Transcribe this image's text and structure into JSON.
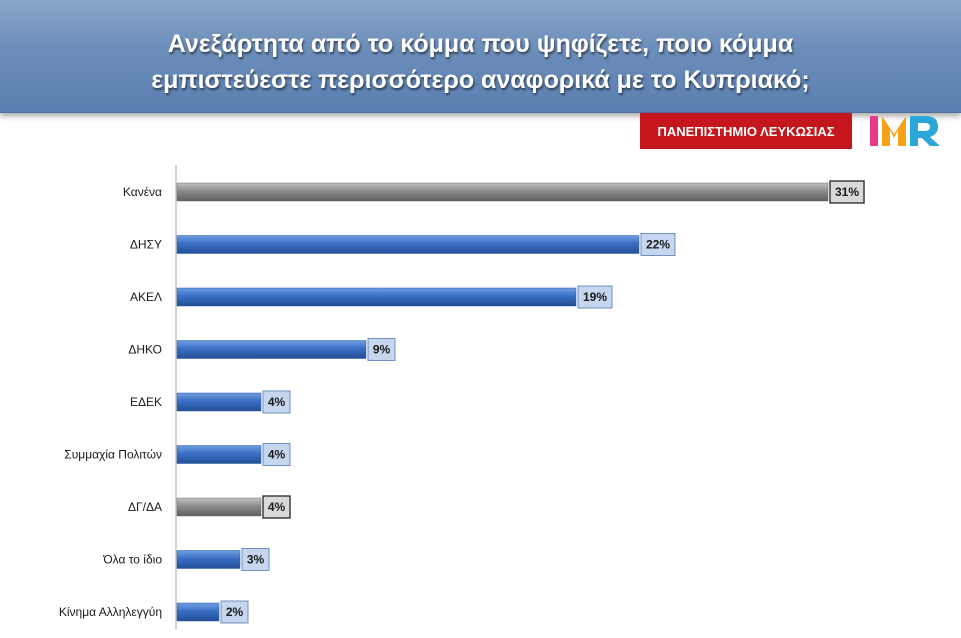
{
  "header": {
    "title_line1": "Ανεξάρτητα από το κόμμα που ψηφίζετε, ποιο κόμμα",
    "title_line2": "εμπιστεύεστε περισσότερο αναφορικά με το Κυπριακό;"
  },
  "logos": {
    "university": "ΠΑΝΕΠΙΣΤΗΜΙΟ ΛΕΥΚΩΣΙΑΣ",
    "imr": "IMR"
  },
  "colors": {
    "header_bg": "#6b8dba",
    "bar_blue": "#3a6fc4",
    "bar_gray": "#8c8c8c",
    "label_blue_bg": "#c5d6ee",
    "label_gray_bg": "#d9d9d9",
    "university_red": "#c4161c"
  },
  "chart_data": {
    "type": "bar",
    "orientation": "horizontal",
    "categories": [
      "Κανένα",
      "ΔΗΣΥ",
      "ΑΚΕΛ",
      "ΔΗΚΟ",
      "ΕΔΕΚ",
      "Συμμαχία Πολιτών",
      "ΔΓ/ΔΑ",
      "Όλα το ίδιο",
      "Κίνημα Αλληλεγγύη"
    ],
    "values": [
      31,
      22,
      19,
      9,
      4,
      4,
      4,
      3,
      2
    ],
    "value_labels": [
      "31%",
      "22%",
      "19%",
      "9%",
      "4%",
      "4%",
      "4%",
      "3%",
      "2%"
    ],
    "highlight": [
      true,
      false,
      false,
      false,
      false,
      false,
      true,
      false,
      false
    ],
    "unit": "%",
    "xlim": [
      0,
      34
    ],
    "grid": false,
    "legend": "none"
  }
}
